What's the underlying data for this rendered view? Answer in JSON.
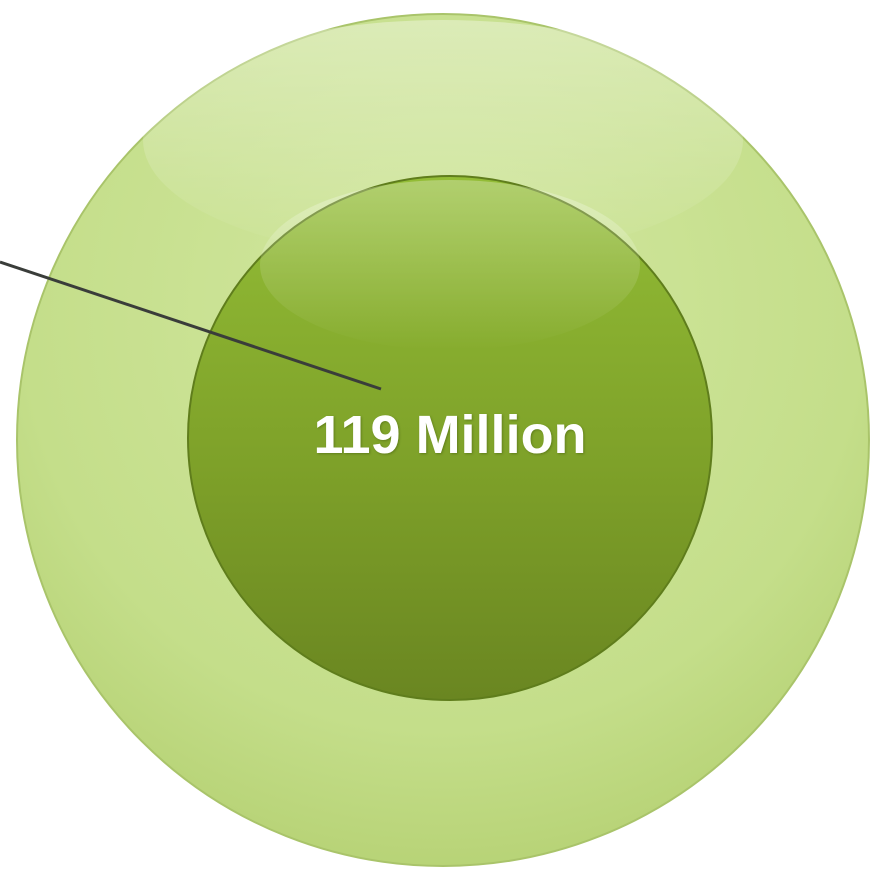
{
  "diagram": {
    "center_label": "119 Million",
    "colors": {
      "outer_ring": "#c4de8a",
      "outer_ring_edge": "#a9c46a",
      "inner_circle_top": "#8cb532",
      "inner_circle_bottom": "#6f8e22",
      "inner_circle_edge": "#5f7d1c",
      "leader_line": "#3a3d3a",
      "label_text": "#ffffff"
    }
  }
}
